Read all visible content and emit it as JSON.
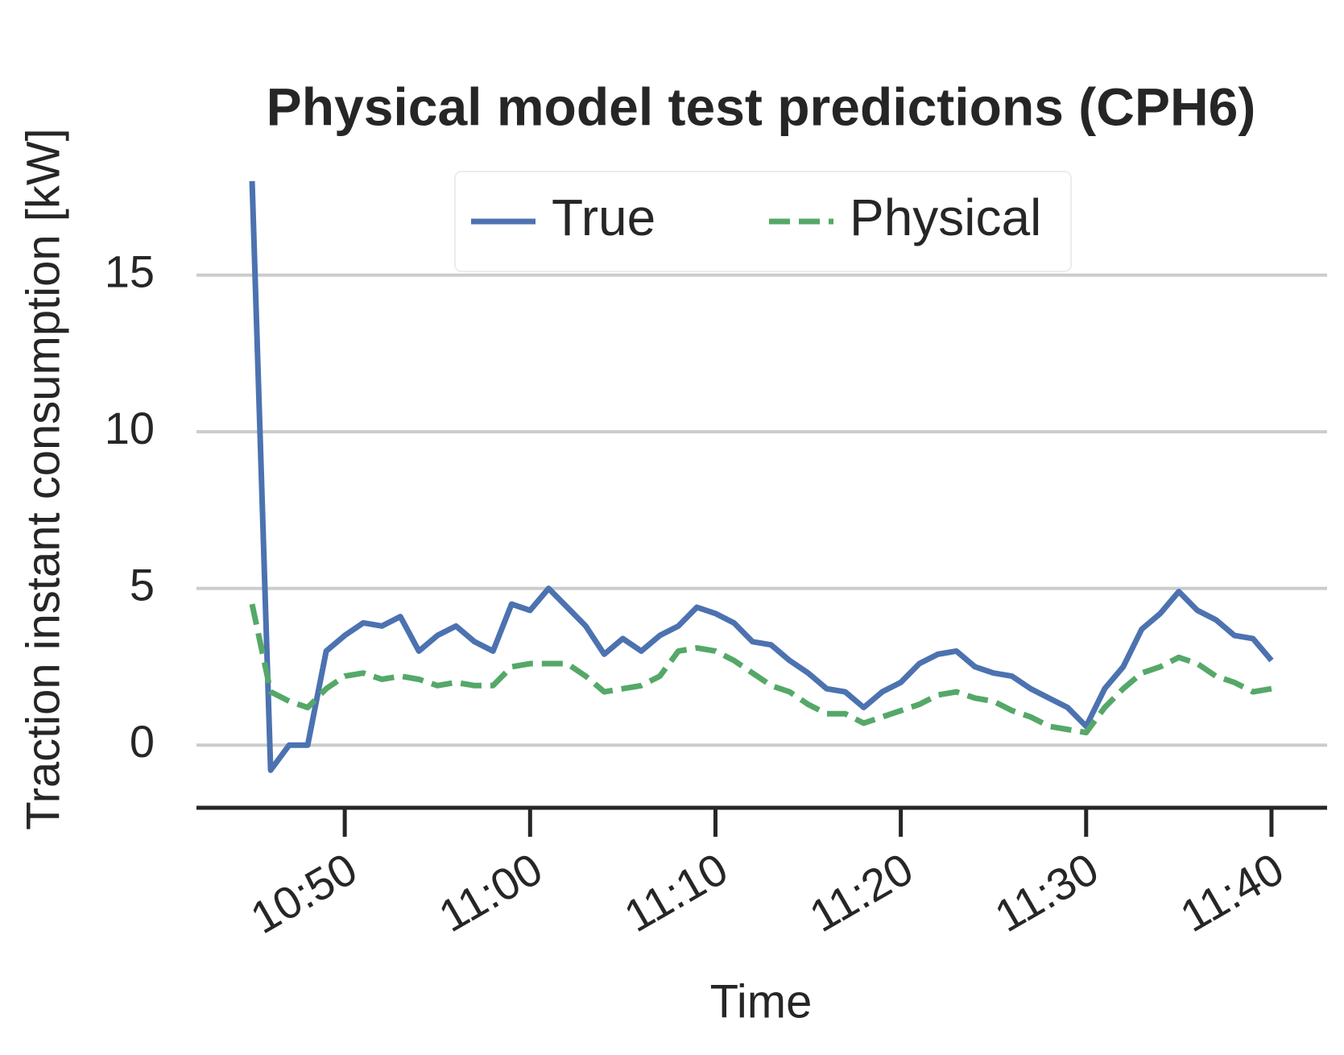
{
  "chart_data": {
    "type": "line",
    "title": "Physical model test predictions (CPH6)",
    "x_label": "Time",
    "y_label": "Traction instant consumption [kW]",
    "x": [
      "10:45",
      "10:46",
      "10:47",
      "10:48",
      "10:49",
      "10:50",
      "10:51",
      "10:52",
      "10:53",
      "10:54",
      "10:55",
      "10:56",
      "10:57",
      "10:58",
      "10:59",
      "11:00",
      "11:01",
      "11:02",
      "11:03",
      "11:04",
      "11:05",
      "11:06",
      "11:07",
      "11:08",
      "11:09",
      "11:10",
      "11:11",
      "11:12",
      "11:13",
      "11:14",
      "11:15",
      "11:16",
      "11:17",
      "11:18",
      "11:19",
      "11:20",
      "11:21",
      "11:22",
      "11:23",
      "11:24",
      "11:25",
      "11:26",
      "11:27",
      "11:28",
      "11:29",
      "11:30",
      "11:31",
      "11:32",
      "11:33",
      "11:34",
      "11:35",
      "11:36",
      "11:37",
      "11:38",
      "11:39",
      "11:40"
    ],
    "series": [
      {
        "name": "True",
        "color": "#4c72b0",
        "dashed": false,
        "values": [
          18,
          -0.8,
          0,
          0,
          3,
          3.5,
          3.9,
          3.8,
          4.1,
          3.0,
          3.5,
          3.8,
          3.3,
          3.0,
          4.5,
          4.3,
          5.0,
          4.4,
          3.8,
          2.9,
          3.4,
          3.0,
          3.5,
          3.8,
          4.4,
          4.2,
          3.9,
          3.3,
          3.2,
          2.7,
          2.3,
          1.8,
          1.7,
          1.2,
          1.7,
          2.0,
          2.6,
          2.9,
          3.0,
          2.5,
          2.3,
          2.2,
          1.8,
          1.5,
          1.2,
          0.6,
          1.8,
          2.5,
          3.7,
          4.2,
          4.9,
          4.3,
          4.0,
          3.5,
          3.4,
          2.7
        ]
      },
      {
        "name": "Physical",
        "color": "#55a868",
        "dashed": true,
        "values": [
          4.5,
          1.7,
          1.4,
          1.2,
          1.8,
          2.2,
          2.3,
          2.1,
          2.2,
          2.1,
          1.9,
          2.0,
          1.9,
          1.9,
          2.5,
          2.6,
          2.6,
          2.6,
          2.2,
          1.7,
          1.8,
          1.9,
          2.2,
          3.0,
          3.1,
          3.0,
          2.7,
          2.3,
          1.9,
          1.7,
          1.3,
          1.0,
          1.0,
          0.7,
          0.9,
          1.1,
          1.3,
          1.6,
          1.7,
          1.5,
          1.4,
          1.1,
          0.9,
          0.6,
          0.5,
          0.4,
          1.2,
          1.8,
          2.3,
          2.5,
          2.8,
          2.6,
          2.2,
          2.0,
          1.7,
          1.8
        ]
      }
    ],
    "xlim": [
      "10:42",
      "11:43"
    ],
    "xticks": [
      "10:50",
      "11:00",
      "11:10",
      "11:20",
      "11:30",
      "11:40"
    ],
    "ylim": [
      -2,
      19
    ],
    "yticks": [
      0,
      5,
      10,
      15
    ],
    "grid": true,
    "legend": "upper center"
  }
}
